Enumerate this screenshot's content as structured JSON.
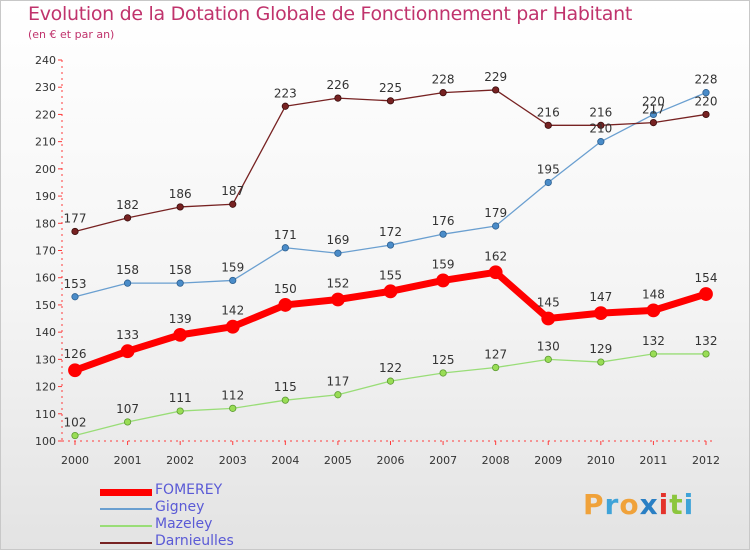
{
  "title": "Evolution de la Dotation Globale de Fonctionnement par Habitant",
  "subtitle": "(en € et par an)",
  "logo": {
    "text": "Proxiti",
    "letters": [
      {
        "ch": "P",
        "color": "#f0a23a"
      },
      {
        "ch": "r",
        "color": "#3fa3d8"
      },
      {
        "ch": "o",
        "color": "#f0a23a"
      },
      {
        "ch": "x",
        "color": "#2a7fc4"
      },
      {
        "ch": "i",
        "color": "#e4332b"
      },
      {
        "ch": "t",
        "color": "#8cc63e"
      },
      {
        "ch": "i",
        "color": "#3fa3d8"
      }
    ]
  },
  "chart_data": {
    "type": "line",
    "x": [
      "2000",
      "2001",
      "2002",
      "2003",
      "2004",
      "2005",
      "2006",
      "2007",
      "2008",
      "2009",
      "2010",
      "2011",
      "2012"
    ],
    "ylim": [
      100,
      240
    ],
    "yticks": [
      100,
      110,
      120,
      130,
      140,
      150,
      160,
      170,
      180,
      190,
      200,
      210,
      220,
      230,
      240
    ],
    "grid": false,
    "legend_position": "bottom-left",
    "series": [
      {
        "name": "FOMEREY",
        "color": "#ff0000",
        "values": [
          126,
          133,
          139,
          142,
          150,
          152,
          155,
          159,
          162,
          145,
          147,
          148,
          154
        ]
      },
      {
        "name": "Gigney",
        "color": "#6a9fd0",
        "values": [
          153,
          158,
          158,
          159,
          171,
          169,
          172,
          176,
          179,
          195,
          210,
          220,
          228
        ]
      },
      {
        "name": "Mazeley",
        "color": "#99dd77",
        "values": [
          102,
          107,
          111,
          112,
          115,
          117,
          122,
          125,
          127,
          130,
          129,
          132,
          132
        ]
      },
      {
        "name": "Darnieulles",
        "color": "#772222",
        "values": [
          177,
          182,
          186,
          187,
          223,
          226,
          225,
          228,
          229,
          216,
          216,
          217,
          220
        ]
      }
    ]
  }
}
